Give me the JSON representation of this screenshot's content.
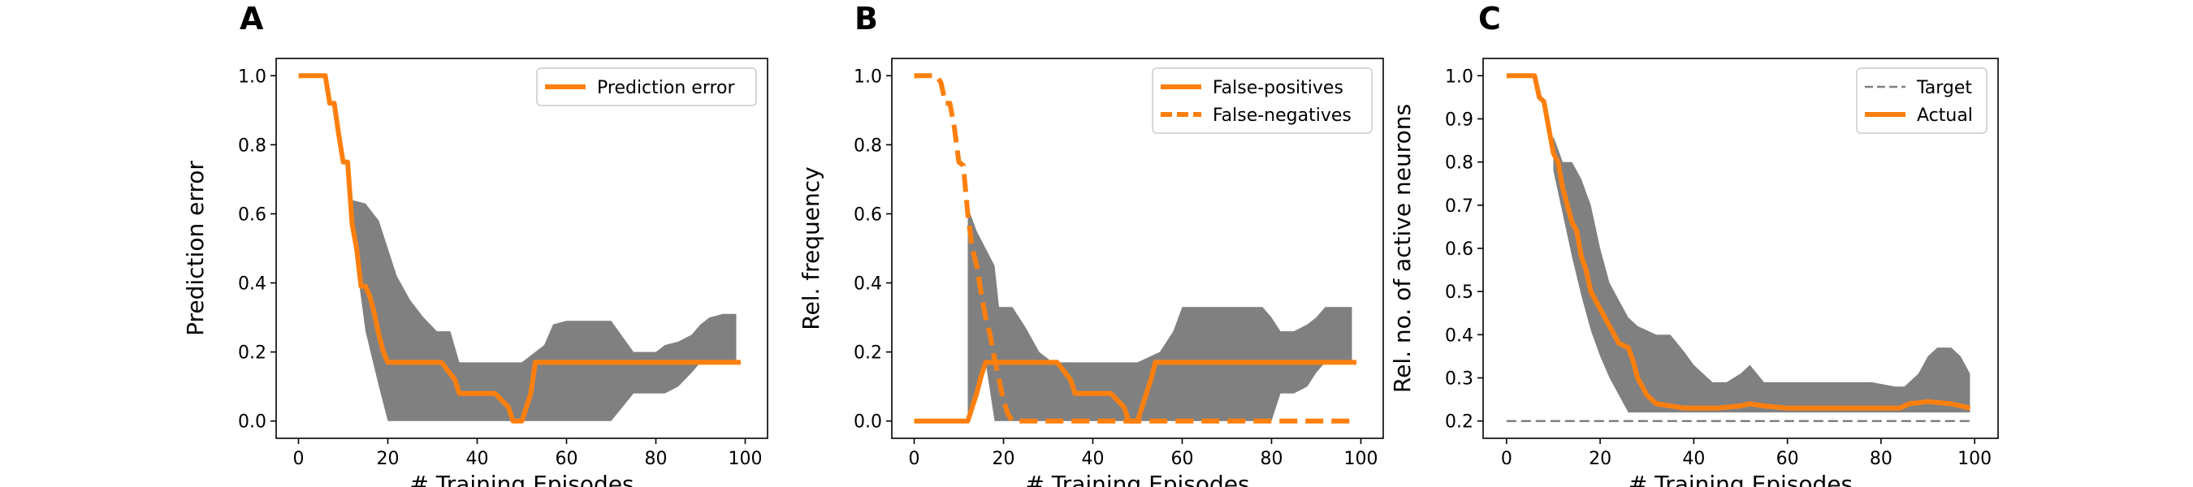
{
  "chart_data": [
    {
      "type": "line",
      "panel": "A",
      "xlabel": "# Training Episodes",
      "ylabel": "Prediction error",
      "xlim": [
        -5,
        105
      ],
      "ylim": [
        -0.05,
        1.05
      ],
      "xticks": [
        "0",
        "20",
        "40",
        "60",
        "80",
        "100"
      ],
      "yticks": [
        "0.0",
        "0.2",
        "0.4",
        "0.6",
        "0.8",
        "1.0"
      ],
      "legend_position": "top-right",
      "colors": {
        "line": "#ff7f0e",
        "band": "#808080"
      },
      "band": {
        "x": [
          12,
          15,
          18,
          20,
          22,
          25,
          28,
          31,
          34,
          36,
          40,
          50,
          55,
          57,
          60,
          70,
          75,
          80,
          82,
          85,
          88,
          90,
          92,
          95,
          98
        ],
        "upper": [
          0.64,
          0.63,
          0.58,
          0.5,
          0.42,
          0.35,
          0.3,
          0.26,
          0.26,
          0.17,
          0.17,
          0.17,
          0.22,
          0.28,
          0.29,
          0.29,
          0.2,
          0.2,
          0.22,
          0.23,
          0.25,
          0.28,
          0.3,
          0.31,
          0.31
        ],
        "lower": [
          0.55,
          0.26,
          0.1,
          0.0,
          0.0,
          0.0,
          0.0,
          0.0,
          0.0,
          0.0,
          0.0,
          0.0,
          0.0,
          0.0,
          0.0,
          0.0,
          0.08,
          0.08,
          0.08,
          0.1,
          0.14,
          0.17,
          0.17,
          0.17,
          0.17
        ]
      },
      "series": [
        {
          "name": "Prediction error",
          "style": "solid",
          "x": [
            0,
            6,
            7,
            8,
            9,
            10,
            11,
            12,
            13,
            14,
            15,
            16,
            17,
            18,
            19,
            20,
            21,
            22,
            23,
            26,
            32,
            35,
            36,
            44,
            47,
            48,
            49,
            50,
            52,
            53,
            55,
            99
          ],
          "y": [
            1.0,
            1.0,
            0.92,
            0.92,
            0.83,
            0.75,
            0.75,
            0.57,
            0.5,
            0.39,
            0.39,
            0.36,
            0.31,
            0.25,
            0.2,
            0.17,
            0.17,
            0.17,
            0.17,
            0.17,
            0.17,
            0.12,
            0.08,
            0.08,
            0.04,
            0.0,
            0.0,
            0.0,
            0.08,
            0.17,
            0.17,
            0.17
          ]
        }
      ]
    },
    {
      "type": "line",
      "panel": "B",
      "xlabel": "# Training Episodes",
      "ylabel": "Rel. frequency",
      "xlim": [
        -5,
        105
      ],
      "ylim": [
        -0.05,
        1.05
      ],
      "xticks": [
        "0",
        "20",
        "40",
        "60",
        "80",
        "100"
      ],
      "yticks": [
        "0.0",
        "0.2",
        "0.4",
        "0.6",
        "0.8",
        "1.0"
      ],
      "legend_position": "top-right",
      "colors": {
        "line": "#ff7f0e",
        "band": "#808080"
      },
      "band": {
        "x": [
          12,
          14,
          16,
          18,
          19,
          20,
          22,
          25,
          28,
          31,
          36,
          50,
          55,
          58,
          60,
          63,
          70,
          78,
          80,
          82,
          85,
          88,
          90,
          92,
          95,
          98
        ],
        "upper": [
          0.62,
          0.55,
          0.5,
          0.45,
          0.33,
          0.33,
          0.33,
          0.27,
          0.2,
          0.17,
          0.17,
          0.17,
          0.2,
          0.26,
          0.33,
          0.33,
          0.33,
          0.33,
          0.3,
          0.26,
          0.26,
          0.28,
          0.3,
          0.33,
          0.33,
          0.33
        ],
        "lower": [
          0.0,
          0.08,
          0.17,
          0.0,
          0.0,
          0.0,
          0.0,
          0.0,
          0.0,
          0.0,
          0.0,
          0.0,
          0.0,
          0.0,
          0.0,
          0.0,
          0.0,
          0.0,
          0.0,
          0.08,
          0.08,
          0.1,
          0.14,
          0.17,
          0.17,
          0.17
        ]
      },
      "series": [
        {
          "name": "False-positives",
          "style": "solid",
          "x": [
            0,
            12,
            13,
            14,
            15,
            16,
            17,
            32,
            35,
            36,
            44,
            47,
            48,
            50,
            52,
            53,
            54,
            55,
            99
          ],
          "y": [
            0.0,
            0.0,
            0.04,
            0.08,
            0.13,
            0.17,
            0.17,
            0.17,
            0.12,
            0.08,
            0.08,
            0.04,
            0.0,
            0.0,
            0.08,
            0.12,
            0.17,
            0.17,
            0.17
          ]
        },
        {
          "name": "False-negatives",
          "style": "dashed",
          "x": [
            0,
            5,
            6,
            7,
            8,
            9,
            10,
            11,
            12,
            13,
            14,
            15,
            16,
            17,
            18,
            19,
            20,
            21,
            22,
            23,
            24,
            99
          ],
          "y": [
            1.0,
            1.0,
            0.98,
            0.92,
            0.92,
            0.85,
            0.75,
            0.74,
            0.6,
            0.5,
            0.45,
            0.37,
            0.3,
            0.25,
            0.18,
            0.12,
            0.06,
            0.02,
            0.0,
            0.0,
            0.0,
            0.0
          ]
        }
      ]
    },
    {
      "type": "line",
      "panel": "C",
      "xlabel": "# Training Episodes",
      "ylabel": "Rel. no. of active neurons",
      "xlim": [
        -5,
        105
      ],
      "ylim": [
        0.16,
        1.04
      ],
      "xticks": [
        "0",
        "20",
        "40",
        "60",
        "80",
        "100"
      ],
      "yticks": [
        "0.2",
        "0.3",
        "0.4",
        "0.5",
        "0.6",
        "0.7",
        "0.8",
        "0.9",
        "1.0"
      ],
      "legend_position": "top-right",
      "colors": {
        "line": "#ff7f0e",
        "band": "#808080",
        "target": "#808080"
      },
      "band": {
        "x": [
          10,
          12,
          14,
          16,
          18,
          20,
          22,
          24,
          26,
          28,
          30,
          32,
          35,
          38,
          40,
          44,
          47,
          50,
          52,
          55,
          60,
          70,
          78,
          83,
          85,
          88,
          90,
          92,
          95,
          97,
          99
        ],
        "upper": [
          0.86,
          0.8,
          0.8,
          0.76,
          0.7,
          0.6,
          0.52,
          0.48,
          0.44,
          0.42,
          0.41,
          0.4,
          0.4,
          0.36,
          0.33,
          0.29,
          0.29,
          0.31,
          0.33,
          0.29,
          0.29,
          0.29,
          0.29,
          0.28,
          0.28,
          0.31,
          0.35,
          0.37,
          0.37,
          0.35,
          0.31
        ],
        "lower": [
          0.78,
          0.68,
          0.58,
          0.49,
          0.41,
          0.35,
          0.3,
          0.26,
          0.22,
          0.22,
          0.22,
          0.22,
          0.22,
          0.22,
          0.22,
          0.22,
          0.22,
          0.22,
          0.22,
          0.22,
          0.22,
          0.22,
          0.22,
          0.22,
          0.22,
          0.22,
          0.22,
          0.22,
          0.22,
          0.22,
          0.22
        ]
      },
      "series": [
        {
          "name": "Target",
          "style": "dashed-thin",
          "x": [
            0,
            99
          ],
          "y": [
            0.2,
            0.2
          ]
        },
        {
          "name": "Actual",
          "style": "solid",
          "x": [
            0,
            6,
            7,
            8,
            9,
            10,
            11,
            12,
            13,
            14,
            15,
            16,
            17,
            18,
            19,
            20,
            22,
            24,
            26,
            27,
            28,
            30,
            32,
            35,
            38,
            40,
            45,
            50,
            52,
            55,
            60,
            70,
            80,
            84,
            86,
            90,
            95,
            97,
            99
          ],
          "y": [
            1.0,
            1.0,
            0.95,
            0.94,
            0.88,
            0.82,
            0.8,
            0.74,
            0.7,
            0.66,
            0.64,
            0.58,
            0.55,
            0.5,
            0.48,
            0.46,
            0.42,
            0.38,
            0.37,
            0.34,
            0.3,
            0.26,
            0.24,
            0.235,
            0.23,
            0.23,
            0.23,
            0.235,
            0.24,
            0.235,
            0.23,
            0.23,
            0.23,
            0.23,
            0.24,
            0.245,
            0.24,
            0.235,
            0.23
          ]
        }
      ]
    }
  ]
}
